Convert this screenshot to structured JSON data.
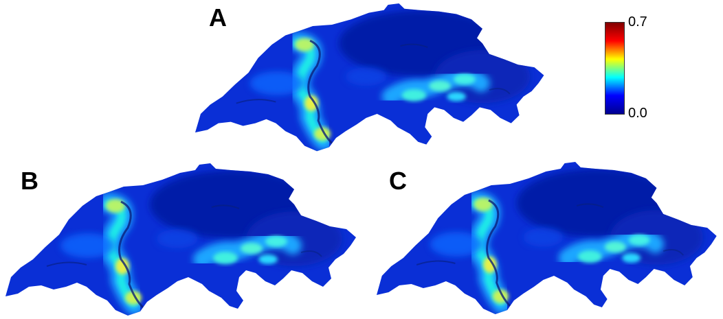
{
  "panels": [
    {
      "label": "A"
    },
    {
      "label": "B"
    },
    {
      "label": "C"
    }
  ],
  "colorbar": {
    "max_label": "0.7",
    "min_label": "0.0",
    "max_value": 0.7,
    "min_value": 0.0,
    "colormap": "jet",
    "colors": [
      "#00008f",
      "#0000ff",
      "#00ffff",
      "#ffff00",
      "#ff0000",
      "#800000"
    ]
  }
}
